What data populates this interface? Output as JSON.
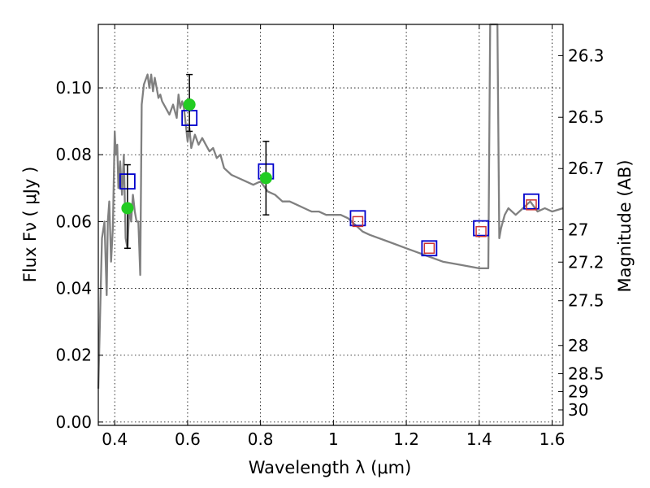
{
  "chart_data": {
    "type": "line",
    "xlabel": "Wavelength  λ (μm)",
    "ylabel": "Flux  Fν ( μJy )",
    "y2label": "Magnitude (AB)",
    "xlim": [
      0.355,
      1.63
    ],
    "ylim": [
      -0.001,
      0.119
    ],
    "grid": true,
    "x_ticks": [
      0.4,
      0.6,
      0.8,
      1.0,
      1.2,
      1.4,
      1.6
    ],
    "x_tick_labels": [
      "0.4",
      "0.6",
      "0.8",
      "1",
      "1.2",
      "1.4",
      "1.6"
    ],
    "y_ticks": [
      0.0,
      0.02,
      0.04,
      0.06,
      0.08,
      0.1
    ],
    "y_tick_labels": [
      "0.00",
      "0.02",
      "0.04",
      "0.06",
      "0.08",
      "0.10"
    ],
    "y2_ticks": [
      26.3,
      26.5,
      26.7,
      27.0,
      27.2,
      27.5,
      28.0,
      28.5,
      29.0,
      30.0
    ],
    "y2_tick_labels": [
      "26.3",
      "26.5",
      "26.7",
      "27",
      "27.2",
      "27.5",
      "28",
      "28.5",
      "29",
      "30"
    ],
    "series": [
      {
        "kind": "line",
        "color": "#808080",
        "x": [
          0.355,
          0.365,
          0.372,
          0.378,
          0.381,
          0.385,
          0.39,
          0.395,
          0.4,
          0.403,
          0.407,
          0.41,
          0.415,
          0.42,
          0.425,
          0.43,
          0.435,
          0.44,
          0.445,
          0.45,
          0.455,
          0.46,
          0.465,
          0.47,
          0.474,
          0.48,
          0.49,
          0.495,
          0.5,
          0.505,
          0.51,
          0.515,
          0.52,
          0.525,
          0.53,
          0.54,
          0.55,
          0.56,
          0.57,
          0.575,
          0.58,
          0.585,
          0.59,
          0.6,
          0.605,
          0.61,
          0.62,
          0.63,
          0.64,
          0.65,
          0.66,
          0.67,
          0.68,
          0.69,
          0.7,
          0.72,
          0.74,
          0.76,
          0.78,
          0.8,
          0.82,
          0.84,
          0.86,
          0.88,
          0.9,
          0.92,
          0.94,
          0.96,
          0.98,
          1.0,
          1.02,
          1.04,
          1.06,
          1.08,
          1.1,
          1.15,
          1.2,
          1.25,
          1.3,
          1.35,
          1.4,
          1.425,
          1.43,
          1.435,
          1.44,
          1.445,
          1.45,
          1.455,
          1.46,
          1.47,
          1.48,
          1.5,
          1.52,
          1.54,
          1.56,
          1.58,
          1.6,
          1.63
        ],
        "y": [
          0.01,
          0.055,
          0.06,
          0.038,
          0.06,
          0.066,
          0.048,
          0.058,
          0.087,
          0.08,
          0.083,
          0.07,
          0.078,
          0.068,
          0.08,
          0.055,
          0.052,
          0.064,
          0.06,
          0.068,
          0.063,
          0.06,
          0.06,
          0.044,
          0.095,
          0.101,
          0.104,
          0.1,
          0.104,
          0.099,
          0.103,
          0.1,
          0.097,
          0.098,
          0.096,
          0.094,
          0.092,
          0.095,
          0.091,
          0.098,
          0.094,
          0.096,
          0.094,
          0.084,
          0.088,
          0.082,
          0.086,
          0.083,
          0.085,
          0.083,
          0.081,
          0.082,
          0.079,
          0.08,
          0.076,
          0.074,
          0.073,
          0.072,
          0.071,
          0.072,
          0.069,
          0.068,
          0.066,
          0.066,
          0.065,
          0.064,
          0.063,
          0.063,
          0.062,
          0.062,
          0.062,
          0.061,
          0.059,
          0.057,
          0.056,
          0.054,
          0.052,
          0.05,
          0.048,
          0.047,
          0.046,
          0.046,
          0.119,
          0.119,
          0.119,
          0.119,
          0.119,
          0.055,
          0.058,
          0.062,
          0.064,
          0.062,
          0.064,
          0.066,
          0.063,
          0.064,
          0.063,
          0.064
        ]
      },
      {
        "kind": "open-square",
        "color": "#0000cc",
        "x": [
          0.435,
          0.605,
          0.815,
          1.067,
          1.263,
          1.405,
          1.543
        ],
        "y": [
          0.072,
          0.091,
          0.075,
          0.061,
          0.052,
          0.058,
          0.066
        ]
      },
      {
        "kind": "open-square-small",
        "color": "#cc3333",
        "x": [
          1.067,
          1.263,
          1.405,
          1.543
        ],
        "y": [
          0.06,
          0.052,
          0.057,
          0.065
        ]
      },
      {
        "kind": "filled-circle",
        "color": "#22cc22",
        "x": [
          0.435,
          0.605,
          0.815
        ],
        "y": [
          0.064,
          0.095,
          0.073
        ],
        "yerr_low": [
          0.052,
          0.087,
          0.062
        ],
        "yerr_high": [
          0.077,
          0.104,
          0.084
        ]
      }
    ]
  }
}
